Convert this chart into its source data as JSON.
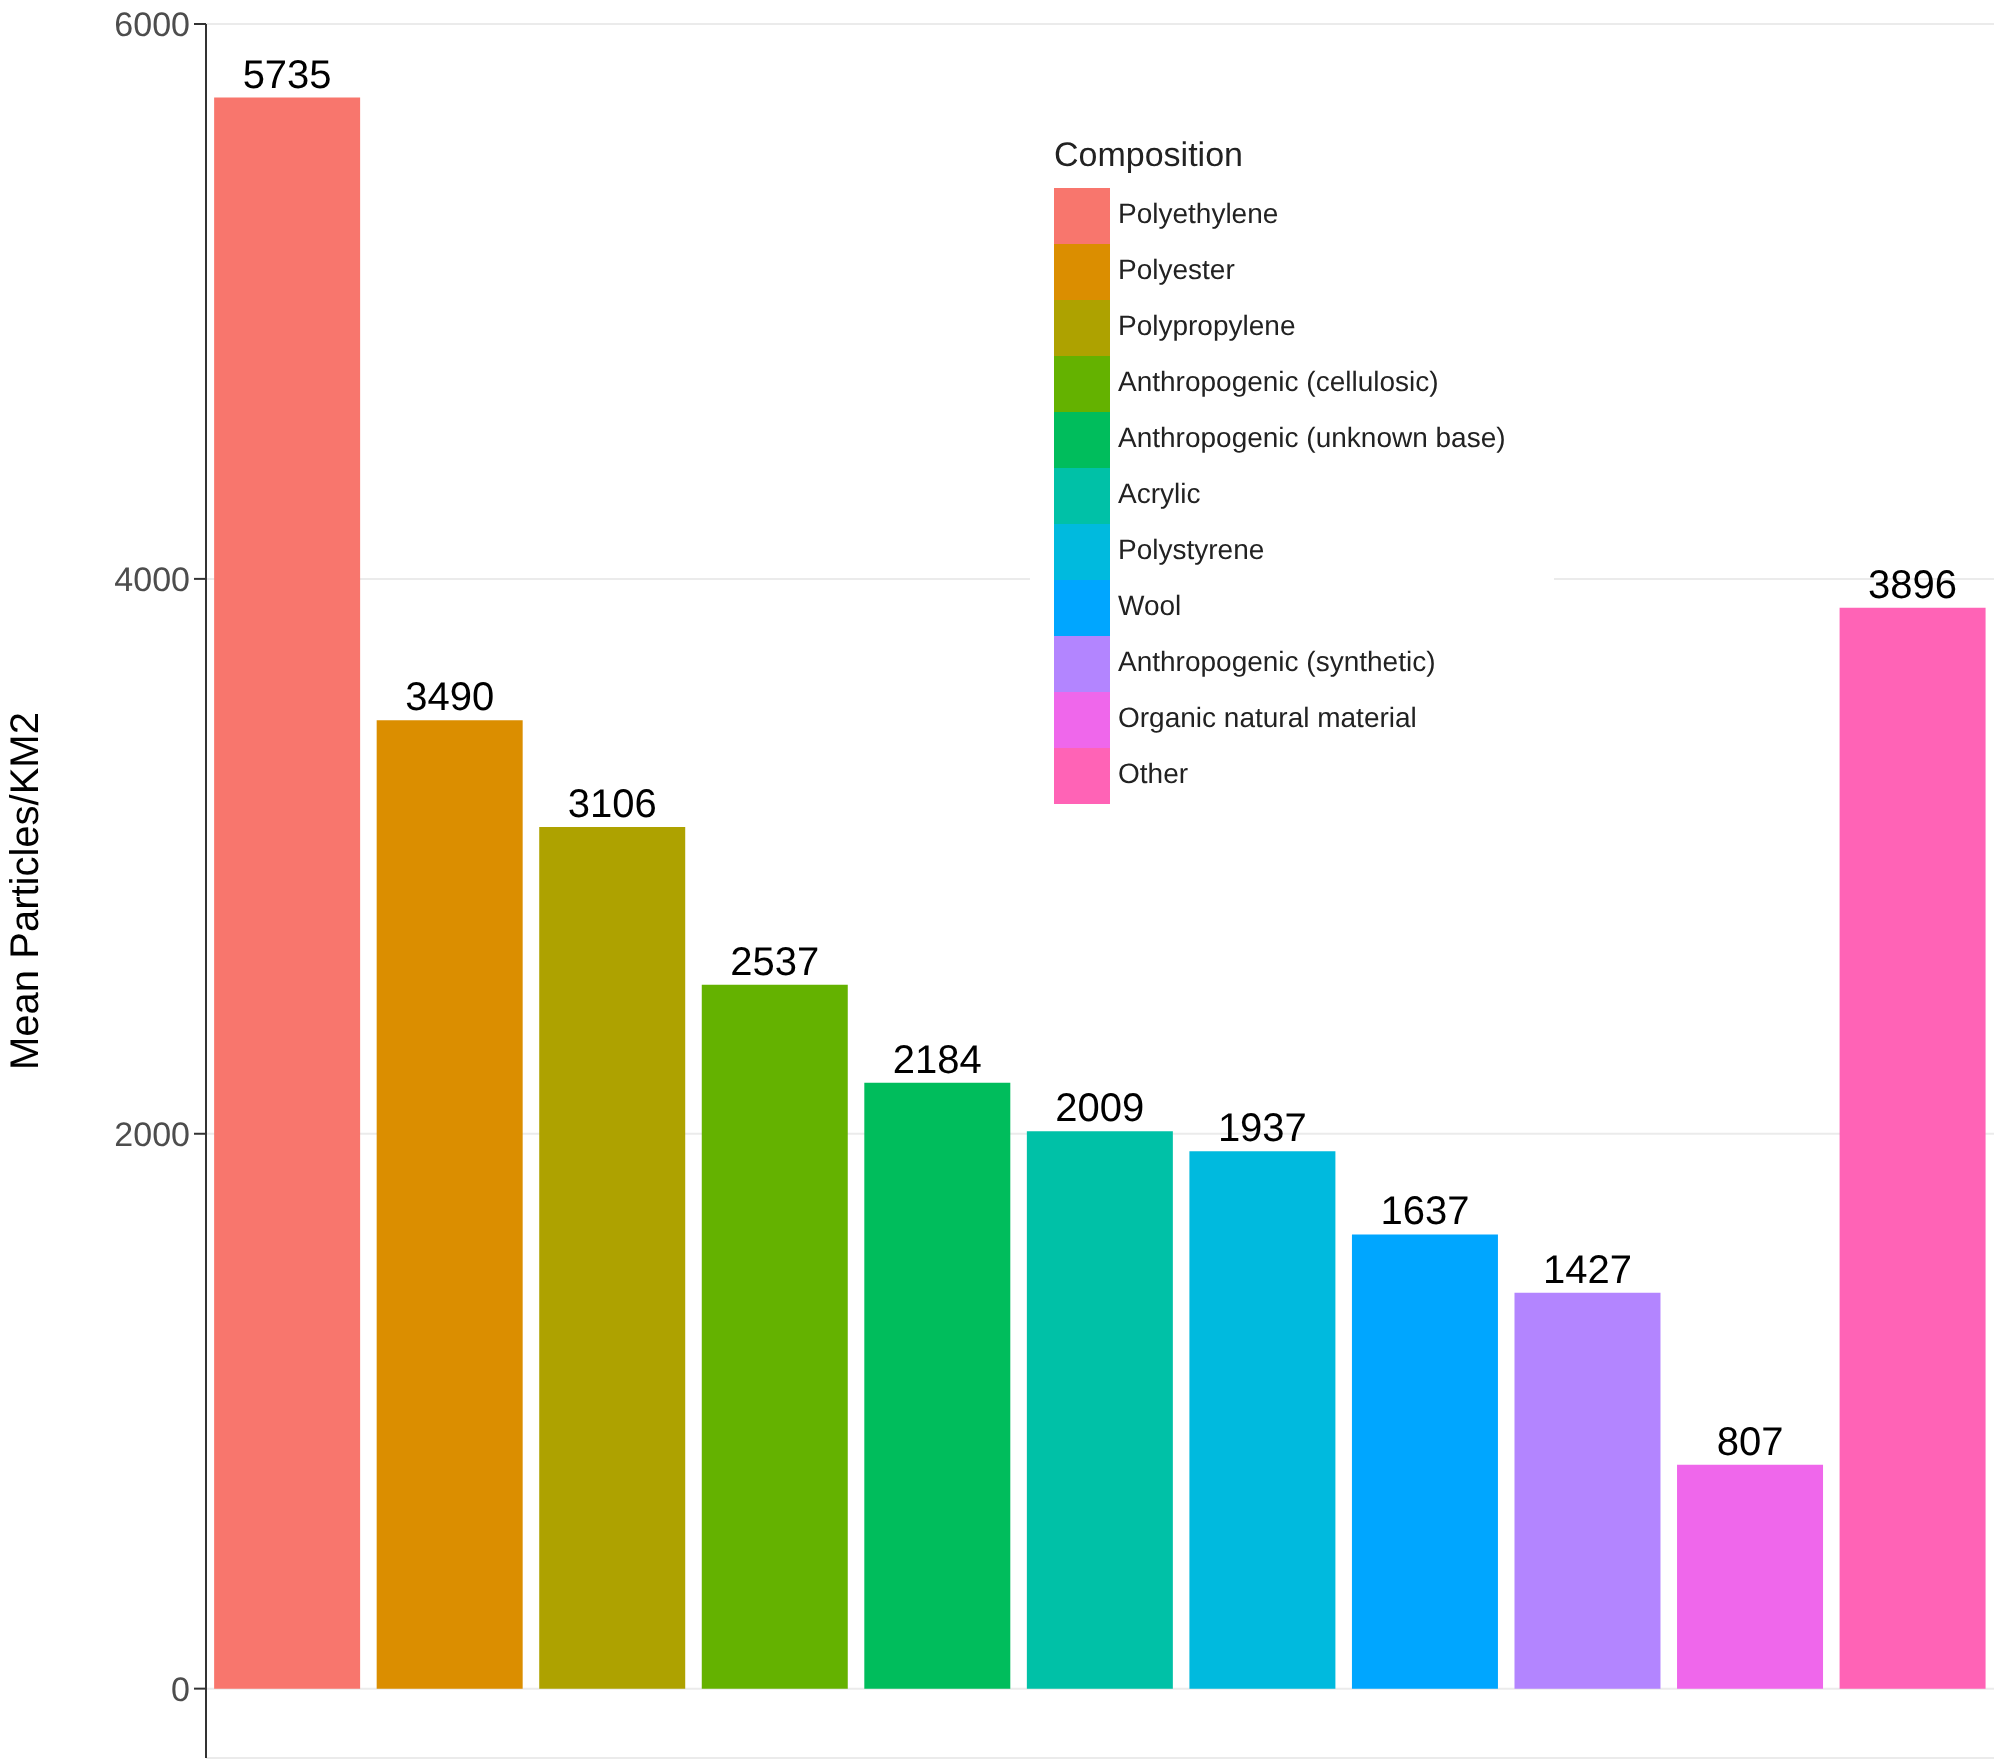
{
  "chart_data": {
    "type": "bar",
    "ylabel": "Mean Particles/KM2",
    "legend_title": "Composition",
    "categories": [
      null,
      null,
      null,
      null,
      null,
      null,
      null,
      null,
      null,
      null,
      null
    ],
    "series": [
      {
        "name": "Polyethylene",
        "color": "#f8766d",
        "values": [
          5735,
          null,
          null,
          null,
          null,
          null,
          null,
          null,
          null,
          null,
          null
        ]
      },
      {
        "name": "Polyester",
        "color": "#db8e00",
        "values": [
          null,
          3490,
          null,
          null,
          null,
          null,
          null,
          null,
          null,
          null,
          null
        ]
      },
      {
        "name": "Polypropylene",
        "color": "#aea200",
        "values": [
          null,
          null,
          3106,
          null,
          null,
          null,
          null,
          null,
          null,
          null,
          null
        ]
      },
      {
        "name": "Anthropogenic (cellulosic)",
        "color": "#64b200",
        "values": [
          null,
          null,
          null,
          2537,
          null,
          null,
          null,
          null,
          null,
          null,
          null
        ]
      },
      {
        "name": "Anthropogenic (unknown base)",
        "color": "#00bd5c",
        "values": [
          null,
          null,
          null,
          null,
          2184,
          null,
          null,
          null,
          null,
          null,
          null
        ]
      },
      {
        "name": "Acrylic",
        "color": "#00c1a7",
        "values": [
          null,
          null,
          null,
          null,
          null,
          2009,
          null,
          null,
          null,
          null,
          null
        ]
      },
      {
        "name": "Polystyrene",
        "color": "#00bade",
        "values": [
          null,
          null,
          null,
          null,
          null,
          null,
          1937,
          null,
          null,
          null,
          null
        ]
      },
      {
        "name": "Wool",
        "color": "#00a6ff",
        "values": [
          null,
          null,
          null,
          null,
          null,
          null,
          null,
          1637,
          null,
          null,
          null
        ]
      },
      {
        "name": "Anthropogenic (synthetic)",
        "color": "#b385ff",
        "values": [
          null,
          null,
          null,
          null,
          null,
          null,
          null,
          null,
          1427,
          null,
          null
        ]
      },
      {
        "name": "Organic natural material",
        "color": "#ef67eb",
        "values": [
          null,
          null,
          null,
          null,
          null,
          null,
          null,
          null,
          null,
          807,
          null
        ]
      },
      {
        "name": "Other",
        "color": "#ff63b6",
        "values": [
          null,
          null,
          null,
          null,
          null,
          null,
          null,
          null,
          null,
          null,
          3896
        ]
      }
    ],
    "stacked": true,
    "ylim": [
      -250,
      6000
    ],
    "yticks": [
      0,
      2000,
      4000,
      6000
    ],
    "grid": "y",
    "legend": "top right",
    "tick_labels": "y",
    "data_labels": true
  }
}
